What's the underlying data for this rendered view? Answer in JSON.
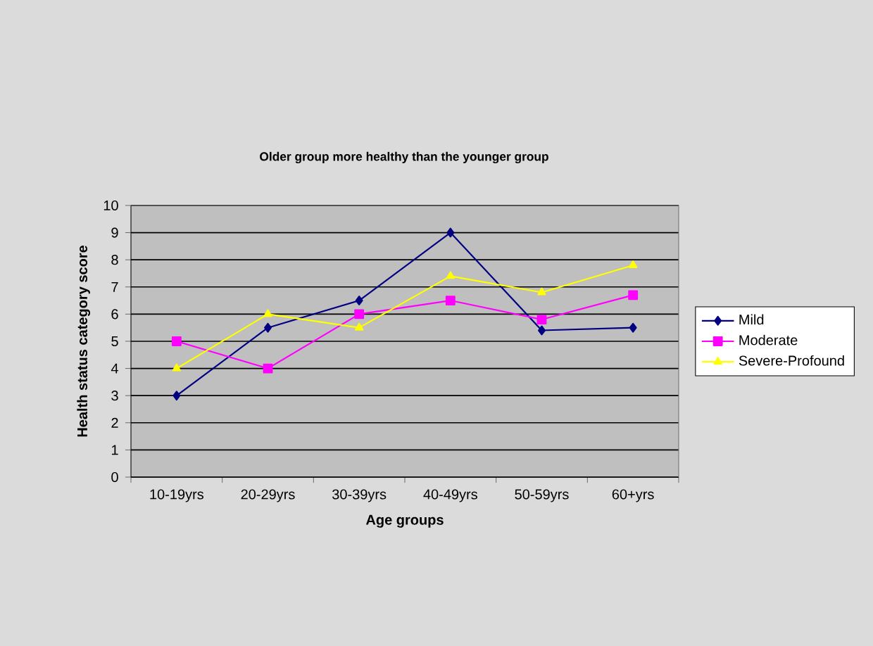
{
  "chart_data": {
    "type": "line",
    "title": "Older group more healthy than the younger group",
    "xlabel": "Age groups",
    "ylabel": "Health status category score",
    "categories": [
      "10-19yrs",
      "20-29yrs",
      "30-39yrs",
      "40-49yrs",
      "50-59yrs",
      "60+yrs"
    ],
    "series": [
      {
        "name": "Mild",
        "color": "#000080",
        "marker": "diamond",
        "values": [
          3,
          5.5,
          6.5,
          9,
          5.4,
          5.5
        ]
      },
      {
        "name": "Moderate",
        "color": "#ff00ff",
        "marker": "square",
        "values": [
          5,
          4,
          6,
          6.5,
          5.8,
          6.7
        ]
      },
      {
        "name": "Severe-Profound",
        "color": "#ffff00",
        "marker": "triangle",
        "values": [
          4,
          6,
          5.5,
          7.4,
          6.8,
          7.8
        ]
      }
    ],
    "ylim": [
      0,
      10
    ],
    "yticks": [
      0,
      1,
      2,
      3,
      4,
      5,
      6,
      7,
      8,
      9,
      10
    ],
    "grid": "y",
    "legend": "right"
  }
}
